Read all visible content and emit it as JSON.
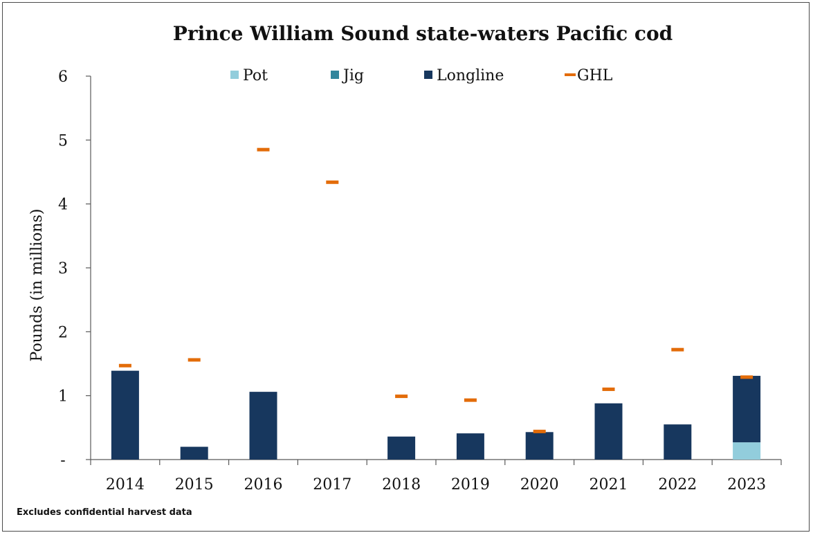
{
  "chart_data": {
    "type": "bar",
    "stacked": true,
    "title": "Prince William Sound state-waters Pacific cod",
    "ylabel": "Pounds (in millions)",
    "xlabel": "",
    "ylim": [
      0,
      6
    ],
    "yticks": [
      0,
      1,
      2,
      3,
      4,
      5,
      6
    ],
    "ytick_labels": [
      "-",
      "1",
      "2",
      "3",
      "4",
      "5",
      "6"
    ],
    "categories": [
      "2014",
      "2015",
      "2016",
      "2017",
      "2018",
      "2019",
      "2020",
      "2021",
      "2022",
      "2023"
    ],
    "series": [
      {
        "name": "Pot",
        "kind": "bar",
        "color": "#92cddc",
        "values": [
          0,
          0,
          0,
          0,
          0,
          0,
          0,
          0,
          0,
          0.27
        ]
      },
      {
        "name": "Jig",
        "kind": "bar",
        "color": "#31859c",
        "values": [
          0,
          0,
          0,
          0,
          0,
          0,
          0,
          0,
          0,
          0
        ]
      },
      {
        "name": "Longline",
        "kind": "bar",
        "color": "#17375e",
        "values": [
          1.39,
          0.2,
          1.06,
          0,
          0.36,
          0.41,
          0.43,
          0.88,
          0.55,
          1.04
        ]
      },
      {
        "name": "GHL",
        "kind": "marker",
        "color": "#e36c09",
        "values": [
          1.47,
          1.56,
          4.85,
          4.34,
          0.99,
          0.93,
          0.44,
          1.1,
          1.72,
          1.29
        ]
      }
    ],
    "legend_position": "top",
    "grid": false
  },
  "footnote": "Excludes confidential harvest data"
}
